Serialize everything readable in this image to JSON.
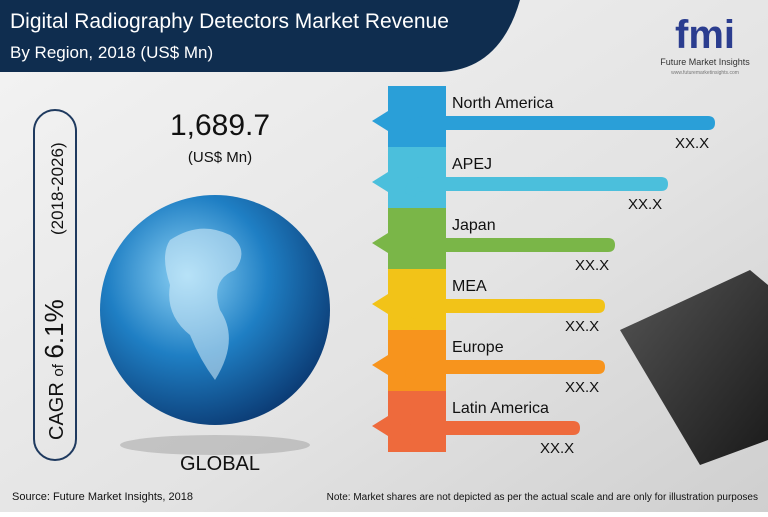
{
  "header": {
    "title": "Digital Radiography Detectors Market Revenue",
    "subtitle": "By Region, 2018 (US$ Mn)"
  },
  "logo": {
    "mark": "fmi",
    "name": "Future Market Insights",
    "url": "www.futuremarketinsights.com"
  },
  "global": {
    "value": "1,689.7",
    "unit": "(US$ Mn)",
    "label": "GLOBAL"
  },
  "cagr": {
    "prefix": "CAGR",
    "of": "of",
    "value": "6.1%",
    "period": "(2018-2026)"
  },
  "regions": [
    {
      "name": "North America",
      "value": "XX.X"
    },
    {
      "name": "APEJ",
      "value": "XX.X"
    },
    {
      "name": "Japan",
      "value": "XX.X"
    },
    {
      "name": "MEA",
      "value": "XX.X"
    },
    {
      "name": "Europe",
      "value": "XX.X"
    },
    {
      "name": "Latin America",
      "value": "XX.X"
    }
  ],
  "footer": {
    "source": "Source: Future Market Insights, 2018",
    "note": "Note: Market shares are not depicted as per the actual scale and are only for illustration purposes"
  }
}
